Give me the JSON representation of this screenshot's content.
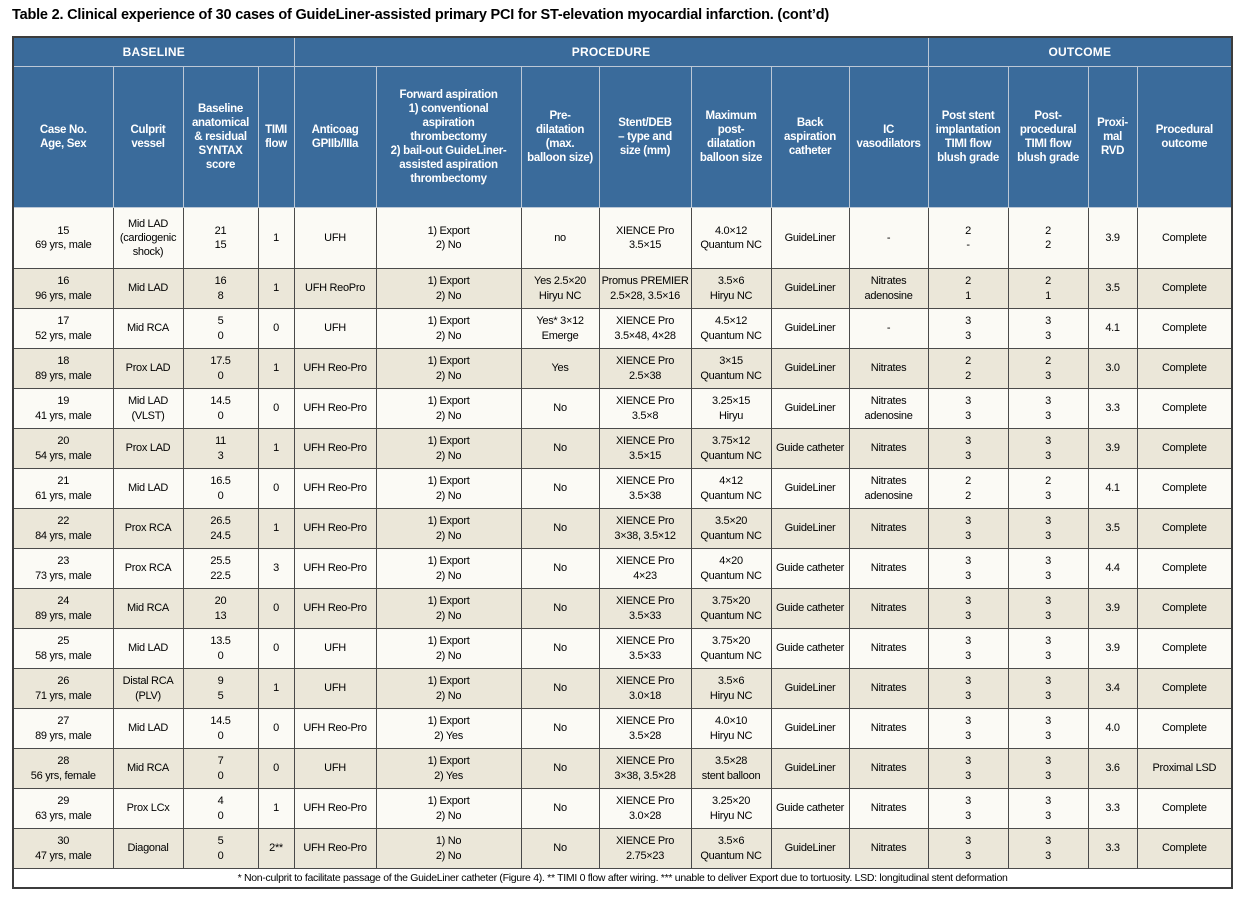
{
  "title": "Table 2. Clinical experience of 30 cases of GuideLiner-assisted primary PCI for ST-elevation myocardial infarction. (cont’d)",
  "colors": {
    "header_blue": "#3a6b9b",
    "row_beige": "#ebe7d9",
    "row_white": "#fbfaf5",
    "border": "#4a4a4a"
  },
  "table": {
    "groups": [
      {
        "label": "BASELINE",
        "span": 4
      },
      {
        "label": "PROCEDURE",
        "span": 7
      },
      {
        "label": "OUTCOME",
        "span": 4
      }
    ],
    "columns": [
      {
        "label": "Case No.\nAge, Sex",
        "width": 100
      },
      {
        "label": "Culprit\nvessel",
        "width": 70
      },
      {
        "label": "Baseline\nanatomical\n& residual\nSYNTAX\nscore",
        "width": 75
      },
      {
        "label": "TIMI\nflow",
        "width": 36
      },
      {
        "label": "Anticoag\nGPIIb/IIIa",
        "width": 82
      },
      {
        "label": "Forward aspiration\n1) conventional\naspiration\nthrombectomy\n2) bail-out GuideLiner-\nassisted aspiration\nthrombectomy",
        "width": 145
      },
      {
        "label": "Pre-\ndilatation\n(max.\nballoon size)",
        "width": 78
      },
      {
        "label": "Stent/DEB\n– type and\nsize (mm)",
        "width": 92
      },
      {
        "label": "Maximum\npost-\ndilatation\nballoon size",
        "width": 80
      },
      {
        "label": "Back\naspiration\ncatheter",
        "width": 78
      },
      {
        "label": "IC\nvasodilators",
        "width": 79
      },
      {
        "label": "Post stent\nimplantation\nTIMI flow\nblush grade",
        "width": 80
      },
      {
        "label": "Post-\nprocedural\nTIMI flow\nblush grade",
        "width": 80
      },
      {
        "label": "Proxi-\nmal RVD",
        "width": 49
      },
      {
        "label": "Procedural\noutcome",
        "width": 95
      }
    ],
    "rows": [
      {
        "cells": [
          "15\n69 yrs, male",
          "Mid LAD\n(cardiogenic shock)",
          "21\n15",
          "1",
          "UFH",
          "1) Export\n2) No",
          "no",
          "XIENCE Pro\n3.5×15",
          "4.0×12\nQuantum NC",
          "GuideLiner",
          "-",
          "2\n-",
          "2\n2",
          "3.9",
          "Complete"
        ]
      },
      {
        "cells": [
          "16\n96 yrs, male",
          "Mid LAD",
          "16\n8",
          "1",
          "UFH ReoPro",
          "1) Export\n2) No",
          "Yes 2.5×20\nHiryu NC",
          "Promus PREMIER\n2.5×28, 3.5×16",
          "3.5×6\nHiryu NC",
          "GuideLiner",
          "Nitrates\nadenosine",
          "2\n1",
          "2\n1",
          "3.5",
          "Complete"
        ]
      },
      {
        "cells": [
          "17\n52 yrs, male",
          "Mid RCA",
          "5\n0",
          "0",
          "UFH",
          "1) Export\n2) No",
          "Yes* 3×12\nEmerge",
          "XIENCE Pro\n3.5×48, 4×28",
          "4.5×12\nQuantum NC",
          "GuideLiner",
          "-",
          "3\n3",
          "3\n3",
          "4.1",
          "Complete"
        ]
      },
      {
        "cells": [
          "18\n89 yrs, male",
          "Prox LAD",
          "17.5\n0",
          "1",
          "UFH Reo-Pro",
          "1) Export\n2) No",
          "Yes",
          "XIENCE Pro\n2.5×38",
          "3×15\nQuantum NC",
          "GuideLiner",
          "Nitrates",
          "2\n2",
          "2\n3",
          "3.0",
          "Complete"
        ]
      },
      {
        "cells": [
          "19\n41 yrs, male",
          "Mid LAD\n(VLST)",
          "14.5\n0",
          "0",
          "UFH Reo-Pro",
          "1) Export\n2) No",
          "No",
          "XIENCE Pro\n3.5×8",
          "3.25×15\nHiryu",
          "GuideLiner",
          "Nitrates\nadenosine",
          "3\n3",
          "3\n3",
          "3.3",
          "Complete"
        ]
      },
      {
        "cells": [
          "20\n54 yrs, male",
          "Prox LAD",
          "11\n3",
          "1",
          "UFH Reo-Pro",
          "1) Export\n2) No",
          "No",
          "XIENCE Pro\n3.5×15",
          "3.75×12\nQuantum NC",
          "Guide catheter",
          "Nitrates",
          "3\n3",
          "3\n3",
          "3.9",
          "Complete"
        ]
      },
      {
        "cells": [
          "21\n61 yrs, male",
          "Mid LAD",
          "16.5\n0",
          "0",
          "UFH Reo-Pro",
          "1) Export\n2) No",
          "No",
          "XIENCE Pro\n3.5×38",
          "4×12\nQuantum NC",
          "GuideLiner",
          "Nitrates\nadenosine",
          "2\n2",
          "2\n3",
          "4.1",
          "Complete"
        ]
      },
      {
        "cells": [
          "22\n84 yrs, male",
          "Prox RCA",
          "26.5\n24.5",
          "1",
          "UFH Reo-Pro",
          "1) Export\n2) No",
          "No",
          "XIENCE Pro\n3×38, 3.5×12",
          "3.5×20\nQuantum NC",
          "GuideLiner",
          "Nitrates",
          "3\n3",
          "3\n3",
          "3.5",
          "Complete"
        ]
      },
      {
        "cells": [
          "23\n73 yrs, male",
          "Prox RCA",
          "25.5\n22.5",
          "3",
          "UFH Reo-Pro",
          "1) Export\n2) No",
          "No",
          "XIENCE Pro\n4×23",
          "4×20\nQuantum NC",
          "Guide catheter",
          "Nitrates",
          "3\n3",
          "3\n3",
          "4.4",
          "Complete"
        ]
      },
      {
        "cells": [
          "24\n89 yrs, male",
          "Mid RCA",
          "20\n13",
          "0",
          "UFH Reo-Pro",
          "1) Export\n2) No",
          "No",
          "XIENCE Pro\n3.5×33",
          "3.75×20\nQuantum NC",
          "Guide catheter",
          "Nitrates",
          "3\n3",
          "3\n3",
          "3.9",
          "Complete"
        ]
      },
      {
        "cells": [
          "25\n58 yrs, male",
          "Mid LAD",
          "13.5\n0",
          "0",
          "UFH",
          "1) Export\n2) No",
          "No",
          "XIENCE Pro\n3.5×33",
          "3.75×20\nQuantum NC",
          "Guide catheter",
          "Nitrates",
          "3\n3",
          "3\n3",
          "3.9",
          "Complete"
        ]
      },
      {
        "cells": [
          "26\n71 yrs, male",
          "Distal RCA\n(PLV)",
          "9\n5",
          "1",
          "UFH",
          "1) Export\n2) No",
          "No",
          "XIENCE Pro\n3.0×18",
          "3.5×6\nHiryu NC",
          "GuideLiner",
          "Nitrates",
          "3\n3",
          "3\n3",
          "3.4",
          "Complete"
        ]
      },
      {
        "cells": [
          "27\n89 yrs, male",
          "Mid LAD",
          "14.5\n0",
          "0",
          "UFH Reo-Pro",
          "1) Export\n2) Yes",
          "No",
          "XIENCE Pro\n3.5×28",
          "4.0×10\nHiryu NC",
          "GuideLiner",
          "Nitrates",
          "3\n3",
          "3\n3",
          "4.0",
          "Complete"
        ]
      },
      {
        "cells": [
          "28\n56 yrs, female",
          "Mid RCA",
          "7\n0",
          "0",
          "UFH",
          "1) Export\n2) Yes",
          "No",
          "XIENCE Pro\n3×38, 3.5×28",
          "3.5×28\nstent balloon",
          "GuideLiner",
          "Nitrates",
          "3\n3",
          "3\n3",
          "3.6",
          "Proximal LSD"
        ]
      },
      {
        "cells": [
          "29\n63 yrs, male",
          "Prox LCx",
          "4\n0",
          "1",
          "UFH Reo-Pro",
          "1) Export\n2) No",
          "No",
          "XIENCE Pro\n3.0×28",
          "3.25×20\nHiryu NC",
          "Guide catheter",
          "Nitrates",
          "3\n3",
          "3\n3",
          "3.3",
          "Complete"
        ]
      },
      {
        "cells": [
          "30\n47 yrs, male",
          "Diagonal",
          "5\n0",
          "2**",
          "UFH Reo-Pro",
          "1) No\n2) No",
          "No",
          "XIENCE Pro\n2.75×23",
          "3.5×6\nQuantum NC",
          "GuideLiner",
          "Nitrates",
          "3\n3",
          "3\n3",
          "3.3",
          "Complete"
        ]
      }
    ],
    "footnote": "* Non-culprit to facilitate passage of the GuideLiner catheter (Figure 4). ** TIMI 0 flow after wiring. *** unable to deliver Export due to tortuosity. LSD: longitudinal stent deformation"
  }
}
